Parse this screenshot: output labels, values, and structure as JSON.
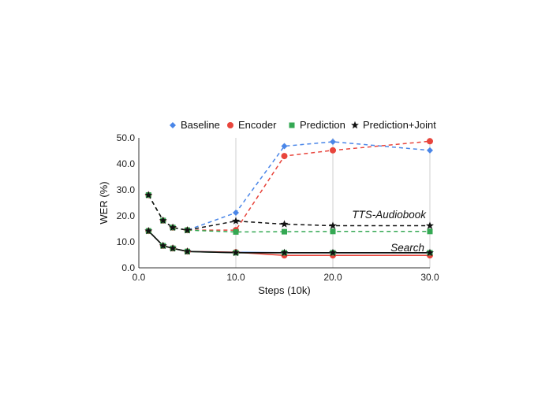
{
  "chart_data": {
    "type": "line",
    "xlabel": "Steps (10k)",
    "ylabel": "WER (%)",
    "xlim": [
      0,
      30
    ],
    "ylim": [
      0,
      50
    ],
    "xticks": [
      0,
      10,
      20,
      30
    ],
    "xtick_labels": [
      "0.0",
      "10.0",
      "20.0",
      "30.0"
    ],
    "yticks": [
      0,
      10,
      20,
      30,
      40,
      50
    ],
    "ytick_labels": [
      "0.0",
      "10.0",
      "20.0",
      "30.0",
      "40.0",
      "50.0"
    ],
    "grid": "vertical",
    "legend_position": "top",
    "series": [
      {
        "name": "Baseline",
        "color": "#4a86e8",
        "marker": "diamond"
      },
      {
        "name": "Encoder",
        "color": "#e8453c",
        "marker": "circle"
      },
      {
        "name": "Prediction",
        "color": "#34a853",
        "marker": "square"
      },
      {
        "name": "Prediction+Joint",
        "color": "#111111",
        "marker": "star"
      }
    ],
    "groups": [
      {
        "label": "TTS-Audiobook",
        "line_style": "dashed",
        "series": [
          {
            "series": "Baseline",
            "x": [
              1,
              2.5,
              3.5,
              5,
              10,
              15,
              20,
              30
            ],
            "y": [
              28,
              18.2,
              15.5,
              14.5,
              21.2,
              46.8,
              48.5,
              45.2
            ]
          },
          {
            "series": "Encoder",
            "x": [
              1,
              2.5,
              3.5,
              5,
              10,
              15,
              20,
              30
            ],
            "y": [
              28,
              18.2,
              15.5,
              14.5,
              14.5,
              43.0,
              45.2,
              48.7
            ]
          },
          {
            "series": "Prediction",
            "x": [
              1,
              2.5,
              3.5,
              5,
              10,
              15,
              20,
              30
            ],
            "y": [
              28,
              18.2,
              15.5,
              14.5,
              13.8,
              13.9,
              14.0,
              14.0
            ]
          },
          {
            "series": "Prediction+Joint",
            "x": [
              1,
              2.5,
              3.5,
              5,
              10,
              15,
              20,
              30
            ],
            "y": [
              28,
              18.2,
              15.5,
              14.5,
              18.0,
              16.8,
              16.2,
              16.2
            ]
          }
        ]
      },
      {
        "label": "Search",
        "line_style": "solid",
        "series": [
          {
            "series": "Baseline",
            "x": [
              1,
              2.5,
              3.5,
              5,
              10,
              15,
              20,
              30
            ],
            "y": [
              14.2,
              8.5,
              7.5,
              6.3,
              6.0,
              5.8,
              5.8,
              5.8
            ]
          },
          {
            "series": "Encoder",
            "x": [
              1,
              2.5,
              3.5,
              5,
              10,
              15,
              20,
              30
            ],
            "y": [
              14.2,
              8.5,
              7.5,
              6.3,
              6.0,
              4.8,
              4.8,
              4.8
            ]
          },
          {
            "series": "Prediction",
            "x": [
              1,
              2.5,
              3.5,
              5,
              10,
              15,
              20,
              30
            ],
            "y": [
              14.2,
              8.5,
              7.5,
              6.3,
              5.8,
              5.8,
              5.8,
              5.8
            ]
          },
          {
            "series": "Prediction+Joint",
            "x": [
              1,
              2.5,
              3.5,
              5,
              10,
              15,
              20,
              30
            ],
            "y": [
              14.2,
              8.5,
              7.5,
              6.3,
              5.8,
              5.8,
              5.8,
              5.8
            ]
          }
        ]
      }
    ]
  }
}
